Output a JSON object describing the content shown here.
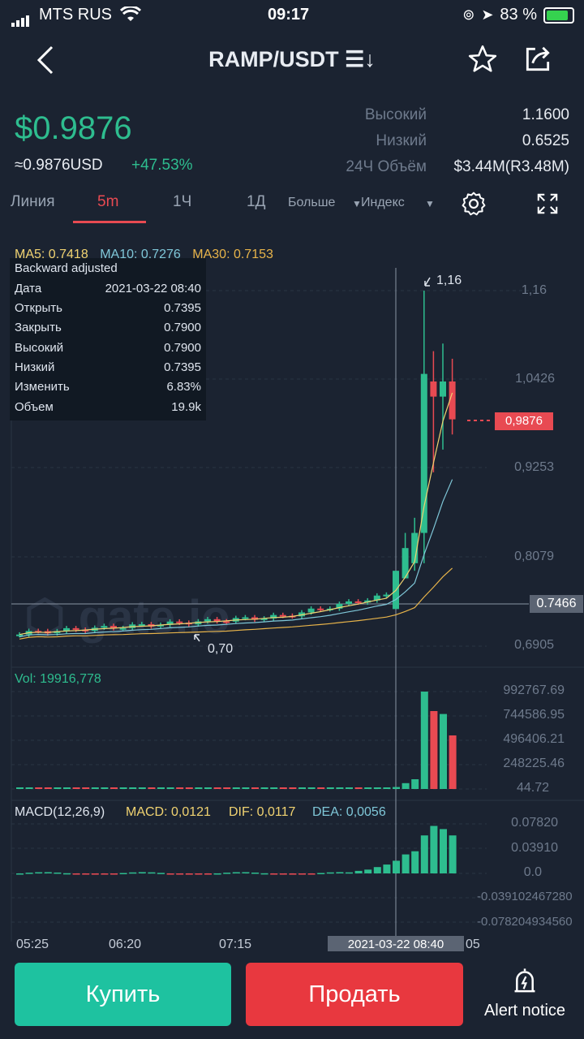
{
  "status_bar": {
    "carrier": "MTS RUS",
    "time": "09:17",
    "battery": "83 %"
  },
  "header": {
    "title": "RAMP/USDT ☰↓"
  },
  "ticker": {
    "price": "$0.9876",
    "usd": "≈0.9876USD",
    "change": "+47.53%",
    "stats": [
      {
        "label": "Высокий",
        "value": "1.1600"
      },
      {
        "label": "Низкий",
        "value": "0.6525"
      },
      {
        "label": "24Ч Объём",
        "value": "$3.44M(R3.48M)"
      }
    ]
  },
  "tabs": {
    "line": "Линия",
    "m5": "5m",
    "h1": "1Ч",
    "d1": "1Д",
    "more": "Больше",
    "index": "Индекс"
  },
  "ma": {
    "ma5": "MA5: 0.7418",
    "ma10": "MA10: 0.7276",
    "ma30": "MA30: 0.7153"
  },
  "tooltip": {
    "title": "Backward adjusted",
    "rows": [
      {
        "k": "Дата",
        "v": "2021-03-22 08:40"
      },
      {
        "k": "Открыть",
        "v": "0.7395"
      },
      {
        "k": "Закрыть",
        "v": "0.7900"
      },
      {
        "k": "Высокий",
        "v": "0.7900"
      },
      {
        "k": "Низкий",
        "v": "0.7395"
      },
      {
        "k": "Изменить",
        "v": "6.83%"
      },
      {
        "k": "Объем",
        "v": "19.9k"
      }
    ]
  },
  "price_axis": [
    "1,16",
    "1,0426",
    "0,9253",
    "0,8079",
    "0,6905"
  ],
  "annotations": {
    "high": "1,16",
    "low": "0,70",
    "last_price": "0,9876",
    "crosshair": "0.7466"
  },
  "vol": {
    "label": "Vol: 19916,778",
    "axis": [
      "992767.69",
      "744586.95",
      "496406.21",
      "248225.46",
      "44.72"
    ]
  },
  "macd": {
    "label": "MACD(12,26,9)",
    "macd": "MACD: 0,0121",
    "dif": "DIF: 0,0117",
    "dea": "DEA: 0,0056",
    "axis": [
      "0.07820",
      "0.03910",
      "0.0",
      "-0.039102467280",
      "-0.078204934560"
    ]
  },
  "time_axis": {
    "t1": "05:25",
    "t2": "06:20",
    "t3": "07:15",
    "cross_date": "2021-03-22 08:40",
    "t4": "05"
  },
  "watermark": "gate.io",
  "buttons": {
    "buy": "Купить",
    "sell": "Продать",
    "alert": "Alert notice"
  },
  "colors": {
    "up": "#2ebd8f",
    "down": "#e84a52",
    "bg": "#1b2331"
  },
  "chart_data": {
    "type": "candlestick",
    "candles_recent": [
      {
        "o": 0.7395,
        "c": 0.79,
        "h": 0.79,
        "l": 0.7395
      },
      {
        "o": 0.78,
        "c": 0.82,
        "h": 0.84,
        "l": 0.78
      },
      {
        "o": 0.8,
        "c": 0.84,
        "h": 0.86,
        "l": 0.79
      },
      {
        "o": 0.84,
        "c": 1.05,
        "h": 1.16,
        "l": 0.8
      },
      {
        "o": 1.04,
        "c": 1.02,
        "h": 1.08,
        "l": 0.92
      },
      {
        "o": 1.02,
        "c": 1.04,
        "h": 1.09,
        "l": 0.95
      },
      {
        "o": 1.04,
        "c": 0.99,
        "h": 1.07,
        "l": 0.97
      }
    ]
  }
}
